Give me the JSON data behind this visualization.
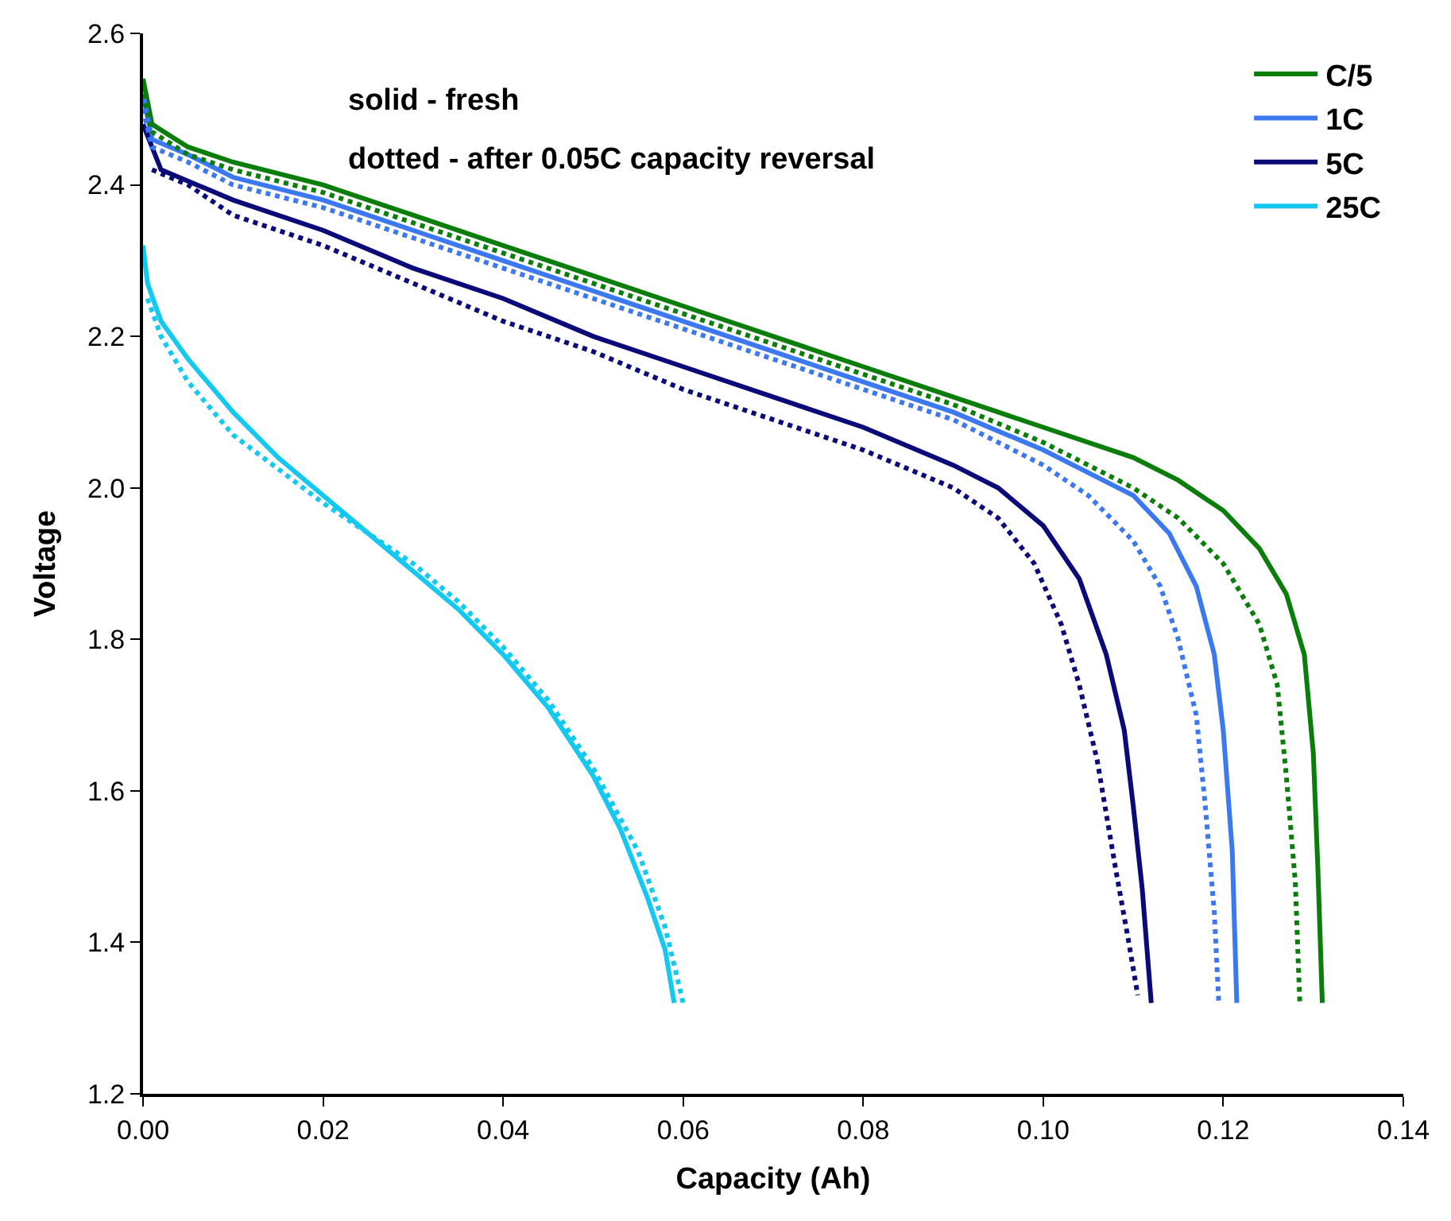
{
  "chart_data": {
    "type": "line",
    "xlabel": "Capacity (Ah)",
    "ylabel": "Voltage",
    "annotations": [
      "solid - fresh",
      "dotted - after 0.05C capacity reversal"
    ],
    "xlim": [
      0,
      0.14
    ],
    "xticks": [
      {
        "value": 0,
        "label": "0.00"
      },
      {
        "value": 0.02,
        "label": "0.02"
      },
      {
        "value": 0.04,
        "label": "0.04"
      },
      {
        "value": 0.06,
        "label": "0.06"
      },
      {
        "value": 0.08,
        "label": "0.08"
      },
      {
        "value": 0.1,
        "label": "0.10"
      },
      {
        "value": 0.12,
        "label": "0.12"
      },
      {
        "value": 0.14,
        "label": "0.14"
      }
    ],
    "ylim": [
      1.2,
      2.6
    ],
    "yticks": [
      {
        "value": 1.2,
        "label": "1.2"
      },
      {
        "value": 1.4,
        "label": "1.4"
      },
      {
        "value": 1.6,
        "label": "1.6"
      },
      {
        "value": 1.8,
        "label": "1.8"
      },
      {
        "value": 2.0,
        "label": "2.0"
      },
      {
        "value": 2.2,
        "label": "2.2"
      },
      {
        "value": 2.4,
        "label": "2.4"
      },
      {
        "value": 2.6,
        "label": "2.6"
      }
    ],
    "legend": "top right",
    "marker": "none",
    "series": [
      {
        "name": "C/5",
        "color": "#0a7d0a",
        "line_style": "solid",
        "x": [
          0,
          0.001,
          0.005,
          0.01,
          0.02,
          0.03,
          0.04,
          0.05,
          0.06,
          0.07,
          0.08,
          0.09,
          0.1,
          0.11,
          0.115,
          0.12,
          0.124,
          0.127,
          0.129,
          0.13,
          0.1305,
          0.131
        ],
        "values": [
          2.54,
          2.48,
          2.45,
          2.43,
          2.4,
          2.36,
          2.32,
          2.28,
          2.24,
          2.2,
          2.16,
          2.12,
          2.08,
          2.04,
          2.01,
          1.97,
          1.92,
          1.86,
          1.78,
          1.65,
          1.5,
          1.32
        ]
      },
      {
        "name": "1C",
        "color": "#3c78f0",
        "line_style": "solid",
        "x": [
          0,
          0.001,
          0.005,
          0.01,
          0.02,
          0.03,
          0.04,
          0.05,
          0.06,
          0.07,
          0.08,
          0.09,
          0.1,
          0.105,
          0.11,
          0.114,
          0.117,
          0.119,
          0.12,
          0.121,
          0.1215
        ],
        "values": [
          2.52,
          2.46,
          2.44,
          2.41,
          2.38,
          2.34,
          2.3,
          2.26,
          2.22,
          2.18,
          2.14,
          2.1,
          2.05,
          2.02,
          1.99,
          1.94,
          1.87,
          1.78,
          1.68,
          1.52,
          1.32
        ]
      },
      {
        "name": "5C",
        "color": "#0a0a78",
        "line_style": "solid",
        "x": [
          0,
          0.002,
          0.01,
          0.02,
          0.03,
          0.04,
          0.05,
          0.06,
          0.07,
          0.08,
          0.09,
          0.095,
          0.1,
          0.104,
          0.107,
          0.109,
          0.11,
          0.111,
          0.112
        ],
        "values": [
          2.48,
          2.42,
          2.38,
          2.34,
          2.29,
          2.25,
          2.2,
          2.16,
          2.12,
          2.08,
          2.03,
          2.0,
          1.95,
          1.88,
          1.78,
          1.68,
          1.58,
          1.47,
          1.32
        ]
      },
      {
        "name": "25C",
        "color": "#14c8f0",
        "line_style": "solid",
        "x": [
          0,
          0.0005,
          0.002,
          0.005,
          0.01,
          0.015,
          0.02,
          0.025,
          0.03,
          0.035,
          0.04,
          0.045,
          0.05,
          0.053,
          0.056,
          0.058,
          0.059
        ],
        "values": [
          2.32,
          2.27,
          2.22,
          2.17,
          2.1,
          2.04,
          1.99,
          1.94,
          1.89,
          1.84,
          1.78,
          1.71,
          1.62,
          1.55,
          1.46,
          1.39,
          1.32
        ]
      },
      {
        "color": "#0a7d0a",
        "line_style": "dotted",
        "x": [
          0,
          0.001,
          0.005,
          0.01,
          0.02,
          0.03,
          0.04,
          0.05,
          0.06,
          0.07,
          0.08,
          0.09,
          0.1,
          0.105,
          0.11,
          0.115,
          0.12,
          0.124,
          0.126,
          0.127,
          0.128,
          0.1285
        ],
        "values": [
          2.52,
          2.47,
          2.44,
          2.42,
          2.39,
          2.35,
          2.31,
          2.27,
          2.23,
          2.19,
          2.15,
          2.11,
          2.06,
          2.03,
          2.0,
          1.96,
          1.9,
          1.82,
          1.74,
          1.62,
          1.48,
          1.32
        ]
      },
      {
        "color": "#3c78f0",
        "line_style": "dotted",
        "x": [
          0,
          0.001,
          0.005,
          0.01,
          0.02,
          0.03,
          0.04,
          0.05,
          0.06,
          0.07,
          0.08,
          0.09,
          0.1,
          0.105,
          0.11,
          0.113,
          0.115,
          0.117,
          0.118,
          0.119,
          0.1195
        ],
        "values": [
          2.5,
          2.45,
          2.43,
          2.4,
          2.37,
          2.33,
          2.29,
          2.25,
          2.21,
          2.17,
          2.13,
          2.09,
          2.03,
          1.99,
          1.93,
          1.87,
          1.8,
          1.7,
          1.58,
          1.44,
          1.32
        ]
      },
      {
        "color": "#0a0a78",
        "line_style": "dotted",
        "x": [
          0.001,
          0.005,
          0.01,
          0.02,
          0.03,
          0.04,
          0.05,
          0.06,
          0.07,
          0.08,
          0.09,
          0.095,
          0.099,
          0.102,
          0.104,
          0.106,
          0.108,
          0.1095,
          0.1105
        ],
        "values": [
          2.42,
          2.4,
          2.36,
          2.32,
          2.27,
          2.22,
          2.18,
          2.13,
          2.09,
          2.05,
          2.0,
          1.96,
          1.9,
          1.82,
          1.74,
          1.64,
          1.5,
          1.4,
          1.33
        ]
      },
      {
        "color": "#14c8f0",
        "line_style": "dotted",
        "x": [
          0.0005,
          0.002,
          0.005,
          0.01,
          0.02,
          0.03,
          0.035,
          0.04,
          0.045,
          0.05,
          0.055,
          0.058,
          0.06
        ],
        "values": [
          2.25,
          2.2,
          2.14,
          2.07,
          1.98,
          1.9,
          1.85,
          1.79,
          1.72,
          1.63,
          1.52,
          1.42,
          1.32
        ]
      }
    ]
  }
}
